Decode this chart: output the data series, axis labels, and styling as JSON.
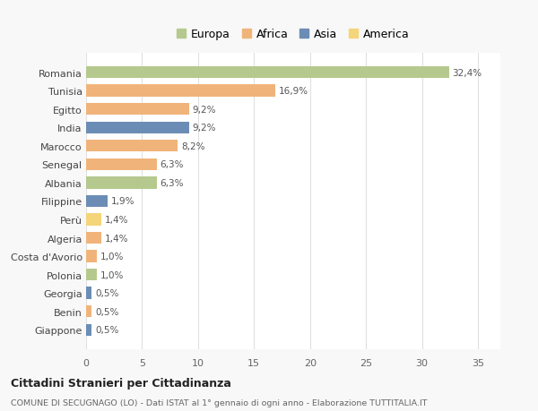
{
  "countries": [
    "Romania",
    "Tunisia",
    "Egitto",
    "India",
    "Marocco",
    "Senegal",
    "Albania",
    "Filippine",
    "Perù",
    "Algeria",
    "Costa d'Avorio",
    "Polonia",
    "Georgia",
    "Benin",
    "Giappone"
  ],
  "values": [
    32.4,
    16.9,
    9.2,
    9.2,
    8.2,
    6.3,
    6.3,
    1.9,
    1.4,
    1.4,
    1.0,
    1.0,
    0.5,
    0.5,
    0.5
  ],
  "labels": [
    "32,4%",
    "16,9%",
    "9,2%",
    "9,2%",
    "8,2%",
    "6,3%",
    "6,3%",
    "1,9%",
    "1,4%",
    "1,4%",
    "1,0%",
    "1,0%",
    "0,5%",
    "0,5%",
    "0,5%"
  ],
  "colors": [
    "#b5c98e",
    "#f0b47a",
    "#f0b47a",
    "#6b8db5",
    "#f0b47a",
    "#f0b47a",
    "#b5c98e",
    "#6b8db5",
    "#f5d57a",
    "#f0b47a",
    "#f0b47a",
    "#b5c98e",
    "#6b8db5",
    "#f0b47a",
    "#6b8db5"
  ],
  "legend_labels": [
    "Europa",
    "Africa",
    "Asia",
    "America"
  ],
  "legend_colors": [
    "#b5c98e",
    "#f0b47a",
    "#6b8db5",
    "#f5d57a"
  ],
  "title": "Cittadini Stranieri per Cittadinanza",
  "subtitle": "COMUNE DI SECUGNAGO (LO) - Dati ISTAT al 1° gennaio di ogni anno - Elaborazione TUTTITALIA.IT",
  "xlim": [
    0,
    37
  ],
  "xticks": [
    0,
    5,
    10,
    15,
    20,
    25,
    30,
    35
  ],
  "bg_color": "#f8f8f8",
  "plot_bg_color": "#ffffff",
  "grid_color": "#e0e0e0"
}
